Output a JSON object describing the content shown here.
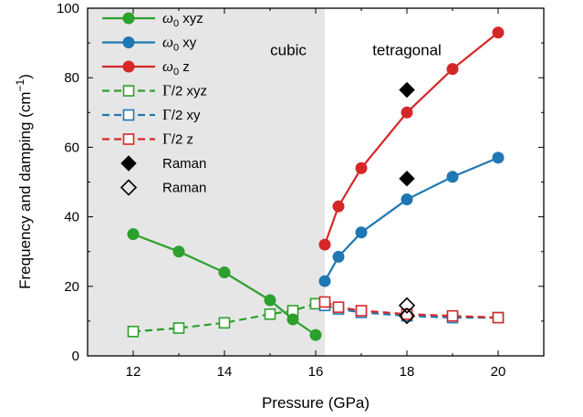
{
  "chart_data": {
    "type": "line",
    "xlabel": "Pressure (GPa)",
    "ylabel": "Frequency and damping (cm",
    "ylabel_unit_sup": "−1",
    "ylabel_close": ")",
    "xlim": [
      11,
      21
    ],
    "ylim": [
      0,
      100
    ],
    "xticks": [
      12,
      14,
      16,
      18,
      20
    ],
    "yticks": [
      0,
      20,
      40,
      60,
      80,
      100
    ],
    "shaded_region": {
      "from": 11,
      "to": 16.2,
      "color": "#e6e6e6"
    },
    "region_labels": [
      {
        "text": "cubic",
        "x": 15.4,
        "y": 88
      },
      {
        "text": "tetragonal",
        "x": 18,
        "y": 88
      }
    ],
    "colors": {
      "green": "#2ca02c",
      "blue": "#1f77b4",
      "red": "#d62728",
      "black": "#000000"
    },
    "series": [
      {
        "name": "ω0 xyz",
        "greek": "ω",
        "sub": "0",
        "rest": " xyz",
        "color": "#2ca02c",
        "style": "solid",
        "marker": "filled-circle",
        "x": [
          12,
          13,
          14,
          15,
          15.5,
          16
        ],
        "y": [
          35,
          30,
          24,
          16,
          10.5,
          6
        ]
      },
      {
        "name": "ω0 xy",
        "greek": "ω",
        "sub": "0",
        "rest": " xy",
        "color": "#1f77b4",
        "style": "solid",
        "marker": "filled-circle",
        "x": [
          16.2,
          16.5,
          17,
          18,
          19,
          20
        ],
        "y": [
          21.5,
          28.5,
          35.5,
          45,
          51.5,
          57
        ]
      },
      {
        "name": "ω0 z",
        "greek": "ω",
        "sub": "0",
        "rest": " z",
        "color": "#d62728",
        "style": "solid",
        "marker": "filled-circle",
        "x": [
          16.2,
          16.5,
          17,
          18,
          19,
          20
        ],
        "y": [
          32,
          43,
          54,
          70,
          82.5,
          93
        ]
      },
      {
        "name": "Γ/2 xyz",
        "greek": "Γ",
        "sub": "",
        "rest": "/2 xyz",
        "color": "#2ca02c",
        "style": "dashed",
        "marker": "open-square",
        "x": [
          12,
          13,
          14,
          15,
          15.5,
          16
        ],
        "y": [
          7,
          8,
          9.5,
          12,
          13,
          15
        ]
      },
      {
        "name": "Γ/2 xy",
        "greek": "Γ",
        "sub": "",
        "rest": "/2 xy",
        "color": "#1f77b4",
        "style": "dashed",
        "marker": "open-square",
        "x": [
          16.2,
          16.5,
          17,
          18,
          19,
          20
        ],
        "y": [
          14.5,
          13.5,
          12.5,
          11.5,
          11,
          11
        ]
      },
      {
        "name": "Γ/2 z",
        "greek": "Γ",
        "sub": "",
        "rest": "/2 z",
        "color": "#d62728",
        "style": "dashed",
        "marker": "open-square",
        "x": [
          16.2,
          16.5,
          17,
          18,
          19,
          20
        ],
        "y": [
          15.5,
          14,
          13,
          12,
          11.5,
          11
        ]
      },
      {
        "name": "Raman",
        "greek": "",
        "sub": "",
        "rest": "Raman",
        "color": "#000000",
        "style": "none",
        "marker": "filled-diamond",
        "x": [
          18,
          18
        ],
        "y": [
          76.5,
          51
        ]
      },
      {
        "name": "Raman",
        "greek": "",
        "sub": "",
        "rest": "Raman",
        "color": "#000000",
        "style": "none",
        "marker": "open-diamond",
        "x": [
          18,
          18
        ],
        "y": [
          14.5,
          11.5
        ]
      }
    ]
  }
}
